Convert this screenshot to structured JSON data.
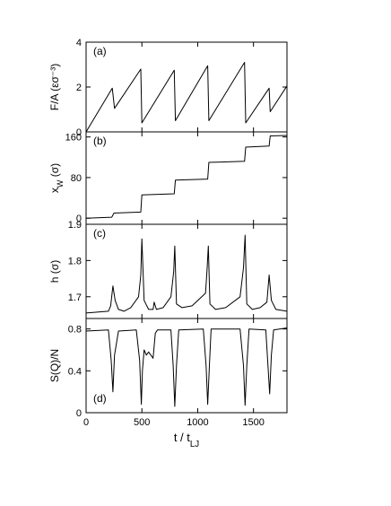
{
  "chart_data": [
    {
      "type": "line",
      "panel_label": "(a)",
      "ylabel": "F/A (εσ⁻³)",
      "xlim": [
        0,
        1800
      ],
      "ylim": [
        0,
        4
      ],
      "yticks": [
        "0",
        "2",
        "4"
      ],
      "ytick_values": [
        0,
        2,
        4
      ],
      "series": [
        {
          "x": [
            0,
            235,
            255,
            490,
            500,
            790,
            800,
            1090,
            1100,
            1420,
            1430,
            1640,
            1650,
            1800
          ],
          "y": [
            0,
            1.95,
            1.05,
            2.8,
            0.4,
            2.75,
            0.5,
            2.95,
            0.5,
            3.1,
            0.4,
            1.95,
            0.9,
            2.05
          ]
        }
      ]
    },
    {
      "type": "line",
      "panel_label": "(b)",
      "ylabel": "x_W (σ)",
      "xlim": [
        0,
        1800
      ],
      "ylim": [
        -12,
        170
      ],
      "yticks": [
        "0",
        "80",
        "160"
      ],
      "ytick_values": [
        0,
        80,
        160
      ],
      "series": [
        {
          "x": [
            0,
            230,
            250,
            490,
            500,
            790,
            800,
            1090,
            1100,
            1420,
            1430,
            1640,
            1650,
            1800
          ],
          "y": [
            0,
            2,
            10,
            12,
            46,
            48,
            75,
            77,
            110,
            112,
            140,
            142,
            162,
            163
          ]
        }
      ]
    },
    {
      "type": "line",
      "panel_label": "(c)",
      "ylabel": "h (σ)",
      "xlim": [
        0,
        1800
      ],
      "ylim": [
        1.64,
        1.9
      ],
      "yticks": [
        "1.7",
        "1.8",
        "1.9"
      ],
      "ytick_values": [
        1.7,
        1.8,
        1.9
      ],
      "series": [
        {
          "x": [
            0,
            200,
            220,
            240,
            260,
            290,
            340,
            400,
            470,
            490,
            500,
            520,
            560,
            600,
            610,
            630,
            690,
            760,
            785,
            795,
            810,
            860,
            950,
            1070,
            1085,
            1095,
            1110,
            1160,
            1250,
            1380,
            1410,
            1425,
            1440,
            1490,
            1560,
            1620,
            1640,
            1660,
            1700,
            1800
          ],
          "y": [
            1.655,
            1.66,
            1.675,
            1.73,
            1.69,
            1.665,
            1.66,
            1.67,
            1.7,
            1.76,
            1.86,
            1.69,
            1.665,
            1.665,
            1.685,
            1.665,
            1.67,
            1.7,
            1.77,
            1.84,
            1.68,
            1.67,
            1.675,
            1.71,
            1.78,
            1.84,
            1.68,
            1.665,
            1.67,
            1.7,
            1.78,
            1.87,
            1.68,
            1.665,
            1.67,
            1.685,
            1.76,
            1.69,
            1.665,
            1.66
          ]
        }
      ]
    },
    {
      "type": "line",
      "panel_label": "(d)",
      "ylabel": "S(Q)/N",
      "xlim": [
        0,
        1800
      ],
      "ylim": [
        0,
        0.9
      ],
      "yticks": [
        "0",
        "0.4",
        "0.8"
      ],
      "ytick_values": [
        0,
        0.4,
        0.8
      ],
      "xticks": [
        "0",
        "500",
        "1000",
        "1500"
      ],
      "xtick_values": [
        0,
        500,
        1000,
        1500
      ],
      "xlabel": "t / t_LJ",
      "series": [
        {
          "x": [
            0,
            200,
            225,
            240,
            255,
            290,
            450,
            480,
            495,
            505,
            520,
            540,
            560,
            600,
            620,
            640,
            760,
            780,
            795,
            810,
            830,
            1050,
            1075,
            1090,
            1105,
            1120,
            1380,
            1410,
            1425,
            1440,
            1460,
            1610,
            1630,
            1645,
            1660,
            1680,
            1800
          ],
          "y": [
            0.78,
            0.79,
            0.5,
            0.2,
            0.55,
            0.78,
            0.79,
            0.5,
            0.08,
            0.4,
            0.6,
            0.55,
            0.58,
            0.52,
            0.76,
            0.79,
            0.79,
            0.45,
            0.06,
            0.45,
            0.79,
            0.8,
            0.45,
            0.08,
            0.45,
            0.8,
            0.8,
            0.45,
            0.07,
            0.45,
            0.8,
            0.79,
            0.45,
            0.18,
            0.55,
            0.79,
            0.81
          ]
        }
      ]
    }
  ]
}
